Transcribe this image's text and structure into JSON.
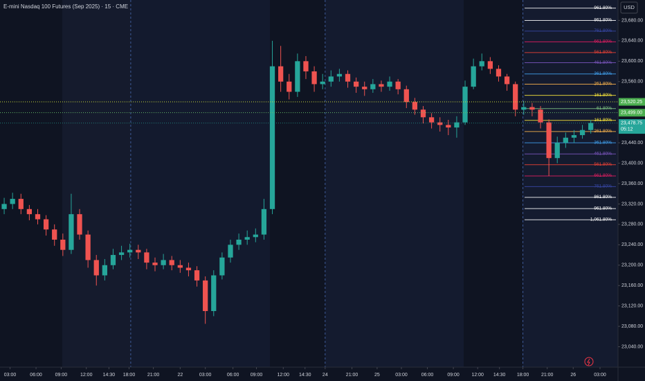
{
  "chart_data": {
    "type": "candlestick",
    "title": "E-mini Nasdaq 100 Futures (Sep 2025) · 15 · CME",
    "currency": "USD",
    "up_color": "#26a69a",
    "down_color": "#ef5350",
    "xlim": [
      0,
      73.5
    ],
    "ylim": [
      23000,
      23720
    ],
    "xticks": [
      {
        "value": 1.2,
        "label": "03:00"
      },
      {
        "value": 4.3,
        "label": "06:00"
      },
      {
        "value": 7.3,
        "label": "09:00"
      },
      {
        "value": 10.3,
        "label": "12:00"
      },
      {
        "value": 13.0,
        "label": "14:30"
      },
      {
        "value": 15.4,
        "label": "18:00"
      },
      {
        "value": 18.3,
        "label": "21:00"
      },
      {
        "value": 21.5,
        "label": "22"
      },
      {
        "value": 24.5,
        "label": "03:00"
      },
      {
        "value": 27.8,
        "label": "06:00"
      },
      {
        "value": 30.6,
        "label": "09:00"
      },
      {
        "value": 33.8,
        "label": "12:00"
      },
      {
        "value": 36.4,
        "label": "14:30"
      },
      {
        "value": 38.8,
        "label": "24"
      },
      {
        "value": 42.0,
        "label": "21:00"
      },
      {
        "value": 45.0,
        "label": "25"
      },
      {
        "value": 47.9,
        "label": "03:00"
      },
      {
        "value": 51.0,
        "label": "06:00"
      },
      {
        "value": 54.1,
        "label": "09:00"
      },
      {
        "value": 57.0,
        "label": "12:00"
      },
      {
        "value": 59.6,
        "label": "14:30"
      },
      {
        "value": 62.4,
        "label": "18:00"
      },
      {
        "value": 65.3,
        "label": "21:00"
      },
      {
        "value": 68.4,
        "label": "26"
      },
      {
        "value": 71.6,
        "label": "03:00"
      }
    ],
    "yticks": [
      {
        "value": 23680,
        "label": "23,680.00"
      },
      {
        "value": 23640,
        "label": "23,640.00"
      },
      {
        "value": 23600,
        "label": "23,600.00"
      },
      {
        "value": 23560,
        "label": "23,560.00"
      },
      {
        "value": 23440,
        "label": "23,440.00"
      },
      {
        "value": 23400,
        "label": "23,400.00"
      },
      {
        "value": 23360,
        "label": "23,360.00"
      },
      {
        "value": 23320,
        "label": "23,320.00"
      },
      {
        "value": 23280,
        "label": "23,280.00"
      },
      {
        "value": 23240,
        "label": "23,240.00"
      },
      {
        "value": 23200,
        "label": "23,200.00"
      },
      {
        "value": 23160,
        "label": "23,160.00"
      },
      {
        "value": 23120,
        "label": "23,120.00"
      },
      {
        "value": 23080,
        "label": "23,080.00"
      },
      {
        "value": 23040,
        "label": "23,040.00"
      }
    ],
    "session_separators": [
      15.6,
      38.8,
      62.4
    ],
    "x": [
      0.5,
      1.5,
      2.5,
      3.5,
      4.5,
      5.5,
      6.5,
      7.5,
      8.5,
      9.5,
      10.5,
      11.5,
      12.5,
      13.5,
      14.5,
      15.5,
      16.5,
      17.5,
      18.5,
      19.5,
      20.5,
      21.5,
      22.5,
      23.5,
      24.5,
      25.5,
      26.5,
      27.5,
      28.5,
      29.5,
      30.5,
      31.5,
      32.5,
      33.5,
      34.5,
      35.5,
      36.5,
      37.5,
      38.5,
      39.5,
      40.5,
      41.5,
      42.5,
      43.5,
      44.5,
      45.5,
      46.5,
      47.5,
      48.5,
      49.5,
      50.5,
      51.5,
      52.5,
      53.5,
      54.5,
      55.5,
      56.5,
      57.5,
      58.5,
      59.5,
      60.5,
      61.5,
      62.5,
      63.5,
      64.5,
      65.5,
      66.5,
      67.5,
      68.5,
      69.5,
      70.5
    ],
    "open": [
      23310,
      23320,
      23330,
      23310,
      23300,
      23290,
      23270,
      23250,
      23230,
      23300,
      23260,
      23210,
      23180,
      23200,
      23220,
      23225,
      23230,
      23225,
      23205,
      23200,
      23210,
      23200,
      23195,
      23190,
      23170,
      23110,
      23180,
      23215,
      23240,
      23250,
      23255,
      23260,
      23310,
      23590,
      23560,
      23540,
      23600,
      23580,
      23555,
      23560,
      23570,
      23575,
      23560,
      23550,
      23545,
      23555,
      23550,
      23560,
      23545,
      23520,
      23505,
      23490,
      23480,
      23475,
      23470,
      23480,
      23550,
      23590,
      23600,
      23585,
      23570,
      23555,
      23505,
      23510,
      23505,
      23480,
      23410,
      23440,
      23450,
      23455,
      23465
    ],
    "high": [
      23332,
      23342,
      23340,
      23318,
      23310,
      23298,
      23280,
      23262,
      23340,
      23310,
      23268,
      23220,
      23212,
      23232,
      23238,
      23242,
      23240,
      23232,
      23215,
      23222,
      23218,
      23210,
      23205,
      23198,
      23178,
      23190,
      23225,
      23250,
      23262,
      23268,
      23272,
      23330,
      23640,
      23630,
      23575,
      23615,
      23610,
      23590,
      23575,
      23582,
      23585,
      23582,
      23568,
      23560,
      23565,
      23562,
      23570,
      23565,
      23552,
      23528,
      23512,
      23498,
      23490,
      23485,
      23492,
      23562,
      23605,
      23615,
      23608,
      23592,
      23575,
      23560,
      23522,
      23518,
      23512,
      23486,
      23452,
      23460,
      23465,
      23475,
      23485
    ],
    "low": [
      23300,
      23310,
      23300,
      23288,
      23280,
      23258,
      23238,
      23218,
      23222,
      23250,
      23195,
      23160,
      23170,
      23192,
      23210,
      23215,
      23212,
      23192,
      23188,
      23192,
      23190,
      23185,
      23178,
      23158,
      23085,
      23100,
      23172,
      23205,
      23230,
      23240,
      23245,
      23250,
      23300,
      23540,
      23525,
      23530,
      23565,
      23540,
      23545,
      23550,
      23560,
      23548,
      23538,
      23532,
      23538,
      23540,
      23542,
      23535,
      23508,
      23495,
      23478,
      23468,
      23462,
      23455,
      23450,
      23475,
      23545,
      23582,
      23575,
      23560,
      23542,
      23492,
      23495,
      23492,
      23468,
      23375,
      23400,
      23430,
      23440,
      23448,
      23458
    ],
    "close": [
      23320,
      23330,
      23310,
      23300,
      23290,
      23270,
      23250,
      23230,
      23300,
      23260,
      23210,
      23180,
      23200,
      23220,
      23225,
      23230,
      23225,
      23205,
      23200,
      23210,
      23200,
      23195,
      23190,
      23170,
      23110,
      23180,
      23215,
      23240,
      23250,
      23255,
      23260,
      23310,
      23590,
      23560,
      23540,
      23600,
      23580,
      23555,
      23560,
      23570,
      23575,
      23560,
      23550,
      23545,
      23555,
      23550,
      23560,
      23545,
      23520,
      23505,
      23490,
      23480,
      23475,
      23470,
      23480,
      23550,
      23590,
      23600,
      23585,
      23570,
      23555,
      23505,
      23510,
      23505,
      23480,
      23410,
      23440,
      23450,
      23455,
      23465,
      23478.75
    ],
    "fib_start": 62.6,
    "fib_levels": [
      {
        "value": 23704,
        "label": "961.80%",
        "color": "#ffffff"
      },
      {
        "value": 23680,
        "label": "861.80%",
        "color": "#ffffff"
      },
      {
        "value": 23659,
        "label": "761.80%",
        "color": "#3949ab"
      },
      {
        "value": 23638,
        "label": "661.80%",
        "color": "#e91e63"
      },
      {
        "value": 23617,
        "label": "561.80%",
        "color": "#f44336"
      },
      {
        "value": 23597,
        "label": "461.80%",
        "color": "#7e57c2"
      },
      {
        "value": 23575,
        "label": "361.80%",
        "color": "#42a5f5"
      },
      {
        "value": 23555,
        "label": "261.80%",
        "color": "#ffb74d"
      },
      {
        "value": 23533,
        "label": "161.80%",
        "color": "#ffeb3b"
      },
      {
        "value": 23507,
        "label": "61.80%",
        "color": "#81c784"
      },
      {
        "value": 23484,
        "label": "161.80%",
        "color": "#ffeb3b"
      },
      {
        "value": 23462,
        "label": "261.80%",
        "color": "#ffb74d"
      },
      {
        "value": 23440,
        "label": "361.80%",
        "color": "#42a5f5"
      },
      {
        "value": 23418,
        "label": "461.80%",
        "color": "#7e57c2"
      },
      {
        "value": 23397,
        "label": "561.80%",
        "color": "#f44336"
      },
      {
        "value": 23375,
        "label": "661.80%",
        "color": "#e91e63"
      },
      {
        "value": 23354,
        "label": "761.80%",
        "color": "#3949ab"
      },
      {
        "value": 23333,
        "label": "861.80%",
        "color": "#ffffff"
      },
      {
        "value": 23311,
        "label": "961.80%",
        "color": "#ffffff"
      },
      {
        "value": 23289,
        "label": "1,061.80%",
        "color": "#ffffff"
      }
    ],
    "price_lines": [
      {
        "value": 23520.25,
        "label": "23,520.25",
        "color": "#4caf50",
        "line_color": "#cddc39"
      },
      {
        "value": 23499,
        "label": "23,499.00",
        "color": "#4caf50",
        "line_color": "#66bb6a"
      }
    ],
    "last_price": {
      "value": 23478.75,
      "label": "23,478.75",
      "countdown": "05:12",
      "color": "#26a69a"
    }
  }
}
